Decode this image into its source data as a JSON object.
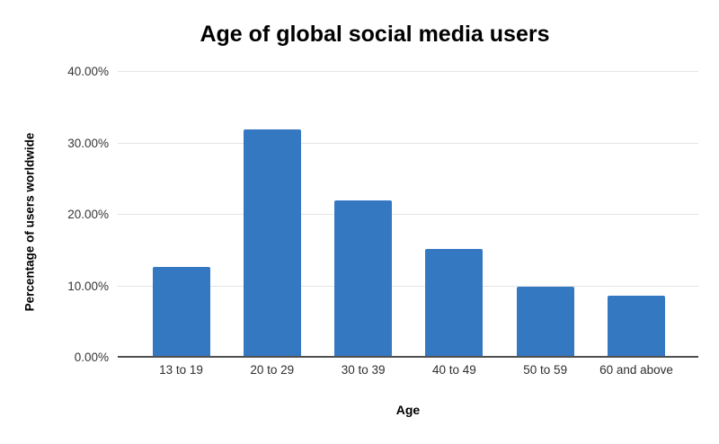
{
  "chart_data": {
    "type": "bar",
    "title": "Age of global social media users",
    "xlabel": "Age",
    "ylabel": "Percentage of users worldwide",
    "categories": [
      "13 to 19",
      "20 to 29",
      "30 to 39",
      "40 to 49",
      "50 to 59",
      "60 and above"
    ],
    "values": [
      12.5,
      31.7,
      21.8,
      15.0,
      9.7,
      8.4
    ],
    "unit": "%",
    "ylim": [
      0,
      40
    ],
    "ytick_values": [
      0,
      10,
      20,
      30,
      40
    ],
    "yticks": [
      "0.00%",
      "10.00%",
      "20.00%",
      "30.00%",
      "40.00%"
    ],
    "grid": "horizontal",
    "legend": "none",
    "colors": {
      "bar": "#3478c2",
      "gridline": "#e4e4e4",
      "baseline": "#4f4f4f",
      "tick_text": "#363636",
      "title_text": "#000000",
      "background": "#ffffff"
    }
  }
}
